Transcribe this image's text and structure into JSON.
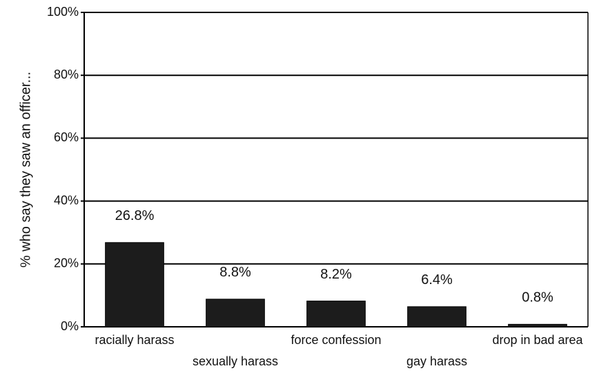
{
  "chart_data": {
    "type": "bar",
    "y_label": "% who say they saw an officer...",
    "categories": [
      "racially harass",
      "sexually harass",
      "force confession",
      "gay harass",
      "drop in bad area"
    ],
    "values": [
      26.8,
      8.8,
      8.2,
      6.4,
      0.8
    ],
    "value_labels": [
      "26.8%",
      "8.8%",
      "8.2%",
      "6.4%",
      "0.8%"
    ],
    "color": "#1c1c1c",
    "ylim": [
      0,
      100
    ],
    "yticks": [
      {
        "value": 0,
        "label": "0%"
      },
      {
        "value": 20,
        "label": "20%"
      },
      {
        "value": 40,
        "label": "40%"
      },
      {
        "value": 60,
        "label": "60%"
      },
      {
        "value": 80,
        "label": "80%"
      },
      {
        "value": 100,
        "label": "100%"
      }
    ],
    "grid": true
  }
}
